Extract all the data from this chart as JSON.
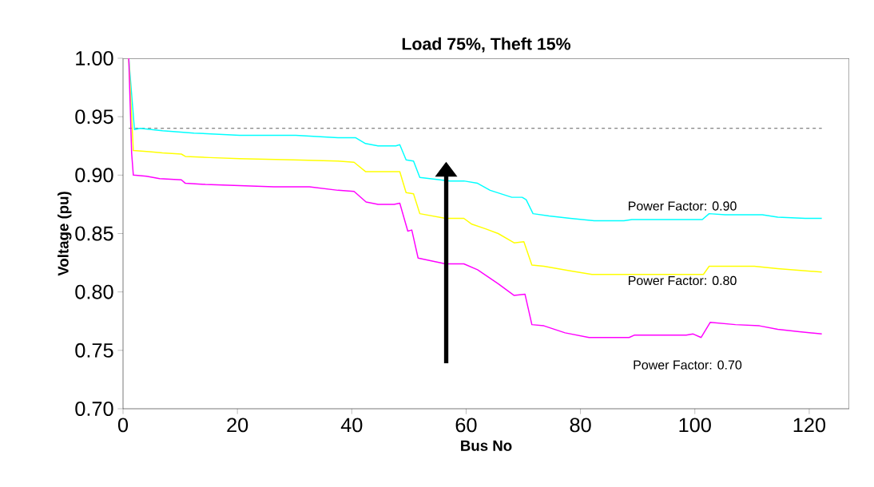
{
  "chart_data": {
    "type": "line",
    "title": "Load 75%, Theft 15%",
    "xlabel": "Bus No",
    "ylabel": "Voltage (pu)",
    "xlim": [
      0,
      127
    ],
    "xticks": [
      0,
      20,
      40,
      60,
      80,
      100,
      120
    ],
    "ylim": [
      0.7,
      1.0
    ],
    "yticks": [
      {
        "value": 0.7,
        "label": "0.70"
      },
      {
        "value": 0.75,
        "label": "0.75"
      },
      {
        "value": 0.8,
        "label": "0.80"
      },
      {
        "value": 0.85,
        "label": "0.85"
      },
      {
        "value": 0.9,
        "label": "0.90"
      },
      {
        "value": 0.95,
        "label": "0.95"
      },
      {
        "value": 1.0,
        "label": "1.00"
      }
    ],
    "grid": false,
    "marker": "none",
    "line_style": "solid",
    "ref_lines": [
      {
        "axis": "y",
        "value": 0.94,
        "color": "#606060",
        "line_style": "dashed"
      }
    ],
    "series": [
      {
        "name": "Power Factor: 0.90",
        "color": "#00ffff",
        "x": [
          1,
          2,
          3,
          6.9,
          12.4,
          20.4,
          30.2,
          37.6,
          40.7,
          42.4,
          44.6,
          47.7,
          48.4,
          49.5,
          50.8,
          51.9,
          57.2,
          59.6,
          62,
          64.2,
          68,
          69.8,
          70.5,
          71.7,
          74.5,
          78.2,
          82.4,
          87.6,
          89,
          101.3,
          102.5,
          105.3,
          111.8,
          114.5,
          119.3,
          122.2
        ],
        "values": [
          1.0,
          0.939,
          0.94,
          0.938,
          0.936,
          0.934,
          0.934,
          0.932,
          0.932,
          0.927,
          0.925,
          0.925,
          0.926,
          0.913,
          0.912,
          0.898,
          0.895,
          0.895,
          0.893,
          0.887,
          0.881,
          0.881,
          0.879,
          0.867,
          0.865,
          0.863,
          0.861,
          0.861,
          0.862,
          0.862,
          0.867,
          0.866,
          0.866,
          0.864,
          0.863,
          0.863
        ]
      },
      {
        "name": "Power Factor: 0.80",
        "color": "#ffff00",
        "x": [
          1,
          1.8,
          4.6,
          6.9,
          10.2,
          10.9,
          15.2,
          20.4,
          29.8,
          37.6,
          40.4,
          42.4,
          48.4,
          49.5,
          50.8,
          51.9,
          56.4,
          59.6,
          61,
          63.4,
          65.6,
          68.4,
          70.1,
          71.5,
          73.6,
          78.2,
          82,
          87.6,
          101.5,
          102.5,
          110.4,
          114.5,
          122.2
        ],
        "values": [
          1.0,
          0.921,
          0.92,
          0.919,
          0.918,
          0.916,
          0.915,
          0.914,
          0.913,
          0.912,
          0.911,
          0.903,
          0.903,
          0.885,
          0.884,
          0.867,
          0.863,
          0.863,
          0.858,
          0.854,
          0.85,
          0.842,
          0.843,
          0.823,
          0.822,
          0.818,
          0.815,
          0.815,
          0.815,
          0.822,
          0.822,
          0.82,
          0.817
        ]
      },
      {
        "name": "Power Factor: 0.70",
        "color": "#ff00ff",
        "x": [
          1,
          1.5,
          1.8,
          4.1,
          6.4,
          10.2,
          10.9,
          14.4,
          20.4,
          26.4,
          32.6,
          37.6,
          40.4,
          42.5,
          44.6,
          47.4,
          48.4,
          49.8,
          50.5,
          51.6,
          56.4,
          59.6,
          62,
          63.8,
          65.6,
          68.4,
          70.3,
          71.5,
          73.6,
          77.3,
          81.5,
          85.2,
          88.5,
          89.4,
          95,
          98.5,
          99.7,
          101.1,
          102.7,
          107.1,
          111.3,
          114.5,
          118.3,
          122.2
        ],
        "values": [
          1.0,
          0.919,
          0.9,
          0.899,
          0.897,
          0.896,
          0.893,
          0.892,
          0.891,
          0.89,
          0.89,
          0.887,
          0.886,
          0.877,
          0.875,
          0.875,
          0.876,
          0.852,
          0.853,
          0.829,
          0.824,
          0.824,
          0.819,
          0.813,
          0.807,
          0.797,
          0.798,
          0.772,
          0.771,
          0.765,
          0.761,
          0.761,
          0.761,
          0.763,
          0.763,
          0.763,
          0.764,
          0.761,
          0.774,
          0.772,
          0.771,
          0.768,
          0.766,
          0.764
        ]
      }
    ]
  }
}
